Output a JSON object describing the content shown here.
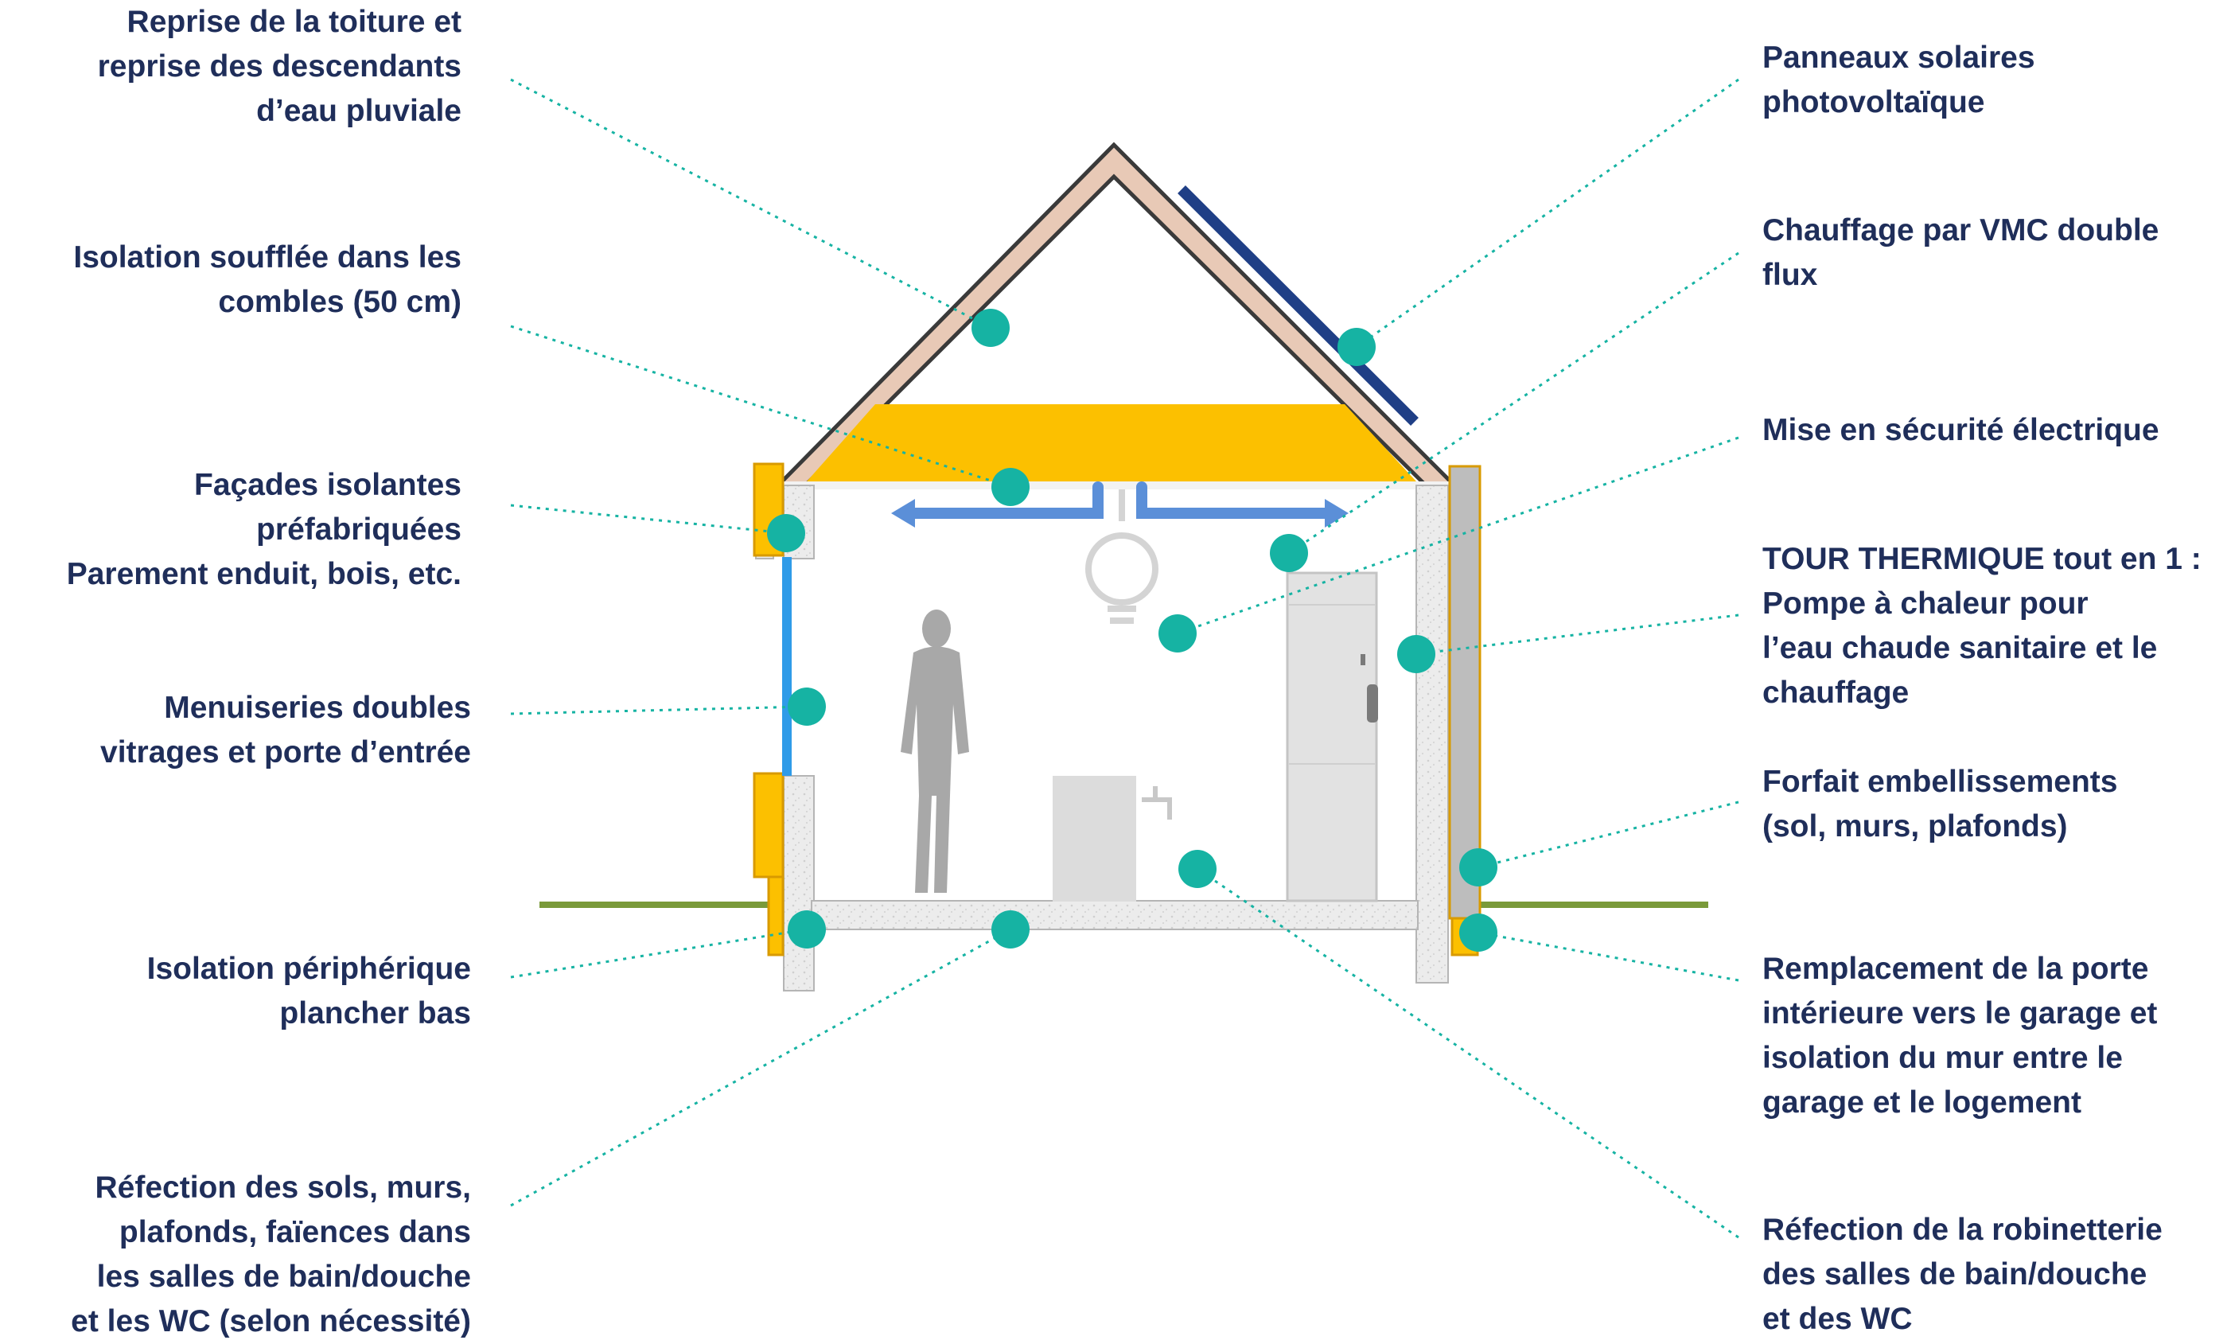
{
  "colors": {
    "label_text": "#1f2e5a",
    "marker": "#16b3a3",
    "leader_line": "#16b3a3",
    "insulation": "#fcc000",
    "roof_frame": "#e8c9b6",
    "solar_panel": "#1f3f86",
    "window": "#2f9be8",
    "ventilation_duct": "#5b8fd8",
    "ground_line": "#7a9a3a",
    "wall_fill": "#ebebeb",
    "cladding_right": "#bdbdbd",
    "silhouette": "#a8a8a8"
  },
  "annotations": {
    "a1": {
      "text": "Reprise de la toiture et\nreprise des descendants\nd’eau pluviale",
      "marker": "roof"
    },
    "a2": {
      "text": "Isolation soufflée dans les\ncombles (50 cm)",
      "marker": "attic-insulation"
    },
    "a3": {
      "text": "Façades isolantes\npréfabriquées\nParement enduit, bois, etc.",
      "marker": "facade"
    },
    "a4": {
      "text": "Menuiseries doubles\nvitrages et porte d’entrée",
      "marker": "window"
    },
    "a5": {
      "text": "Isolation périphérique\nplancher bas",
      "marker": "floor-edge"
    },
    "a6": {
      "text": "Réfection des sols, murs,\nplafonds, faïences dans\nles salles de bain/douche\net les WC (selon nécessité)",
      "marker": "floor-slab"
    },
    "a7": {
      "text": "Panneaux solaires\nphotovoltaïque",
      "marker": "solar-panel"
    },
    "a8": {
      "text": "Chauffage par VMC double\nflux",
      "marker": "vmc"
    },
    "a9": {
      "text": "Mise en sécurité électrique",
      "marker": "electrical"
    },
    "a10": {
      "text": "TOUR THERMIQUE tout en 1 :\nPompe à chaleur pour\nl’eau chaude sanitaire et le\nchauffage",
      "marker": "heat-pump-tower"
    },
    "a11": {
      "text": "Forfait embellissements\n(sol, murs, plafonds)",
      "marker": "finishes"
    },
    "a12": {
      "text": "Remplacement de la porte\nintérieure vers le garage et\nisolation du mur entre le\ngarage et le logement",
      "marker": "garage-wall"
    },
    "a13": {
      "text": "Réfection de la robinetterie\ndes salles de bain/douche\net des WC",
      "marker": "plumbing"
    }
  }
}
